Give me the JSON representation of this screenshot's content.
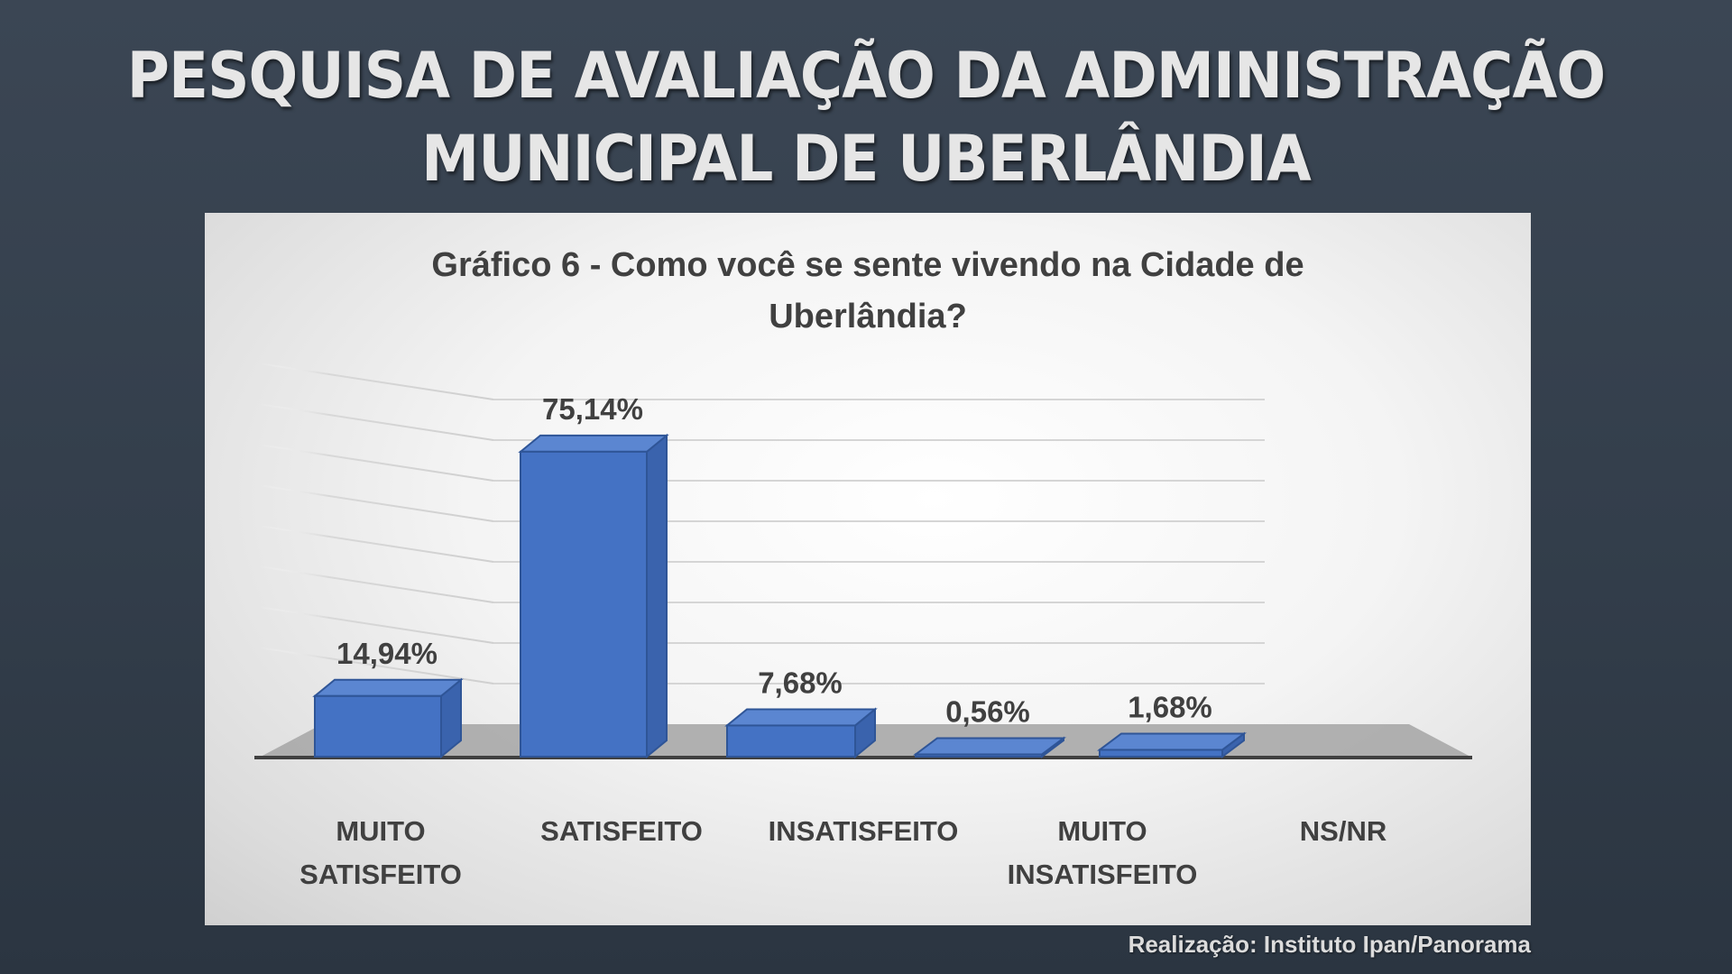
{
  "header": {
    "line1": "PESQUISA  DE AVALIAÇÃO DA ADMINISTRAÇÃO",
    "line2": "MUNICIPAL DE UBERLÂNDIA"
  },
  "footer": {
    "credit": "Realização: Instituto Ipan/Panorama"
  },
  "chart_data": {
    "type": "bar",
    "style": "3d-column",
    "title_line1": "Gráfico 6 - Como você se sente vivendo na Cidade de",
    "title_line2": "Uberlândia?",
    "categories": [
      [
        "MUITO",
        "SATISFEITO"
      ],
      [
        "SATISFEITO"
      ],
      [
        "INSATISFEITO"
      ],
      [
        "MUITO",
        "INSATISFEITO"
      ],
      [
        "NS/NR"
      ]
    ],
    "values": [
      14.94,
      75.14,
      7.68,
      0.56,
      1.68
    ],
    "value_labels": [
      "14,94%",
      "75,14%",
      "7,68%",
      "0,56%",
      "1,68%"
    ],
    "ylim": [
      0,
      80
    ],
    "grid": true,
    "bar_color": "#4472c4",
    "bar_edge_color": "#2f5597"
  }
}
